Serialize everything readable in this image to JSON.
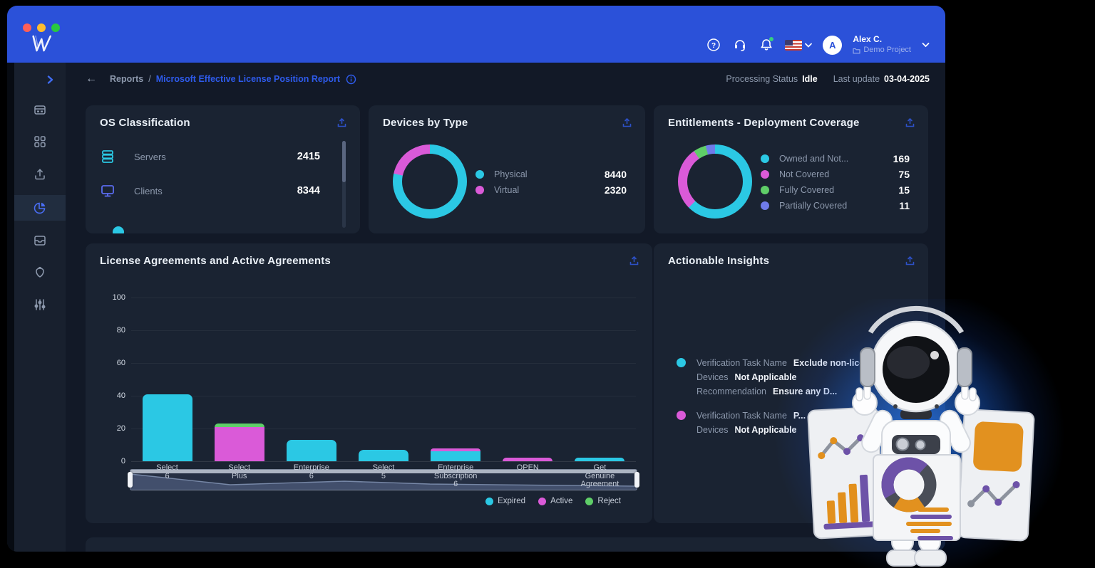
{
  "colors": {
    "header_blue": "#2b51d9",
    "link_blue": "#2e5bec",
    "cyan": "#2bc8e4",
    "magenta": "#da5ad8",
    "green": "#5fce68",
    "purple": "#6f7bea",
    "card_bg": "#1a2332"
  },
  "header": {
    "avatar_letter": "A",
    "user_name": "Alex C.",
    "project_name": "Demo Project",
    "icons": [
      "help-icon",
      "headset-icon",
      "bell-icon",
      "flag-us-icon",
      "chevron-down-icon",
      "folder-icon"
    ]
  },
  "toolbar": {
    "back": "←",
    "breadcrumb_root": "Reports",
    "breadcrumb_separator": "/",
    "breadcrumb_current": "Microsoft Effective License Position Report",
    "processing_status_label": "Processing Status",
    "processing_status_value": "Idle",
    "last_update_label": "Last update",
    "last_update_value": "03-04-2025"
  },
  "sidebar": {
    "items": [
      "devices",
      "apps",
      "upload",
      "reports",
      "inbox",
      "security",
      "filters"
    ],
    "active_item": "reports"
  },
  "cards": {
    "os_classification": {
      "title": "OS Classification",
      "rows": [
        {
          "icon": "servers",
          "label": "Servers",
          "value": "2415"
        },
        {
          "icon": "clients",
          "label": "Clients",
          "value": "8344"
        }
      ]
    },
    "devices_by_type": {
      "title": "Devices by Type",
      "chart_data": {
        "type": "pie",
        "donut": true,
        "series": [
          {
            "label": "Physical",
            "value": 8440,
            "color": "#2bc8e4"
          },
          {
            "label": "Virtual",
            "value": 2320,
            "color": "#da5ad8"
          }
        ]
      }
    },
    "entitlements": {
      "title": "Entitlements - Deployment Coverage",
      "chart_data": {
        "type": "pie",
        "donut": true,
        "series": [
          {
            "label": "Owned and Not...",
            "value": 169,
            "color": "#2bc8e4"
          },
          {
            "label": "Not Covered",
            "value": 75,
            "color": "#da5ad8"
          },
          {
            "label": "Fully Covered",
            "value": 15,
            "color": "#5fce68"
          },
          {
            "label": "Partially Covered",
            "value": 11,
            "color": "#6f7bea"
          }
        ]
      }
    },
    "license_agreements": {
      "title": "License Agreements and Active Agreements",
      "chart_data": {
        "type": "bar",
        "stacked": true,
        "categories": [
          [
            "Select",
            "6"
          ],
          [
            "Select",
            "Plus"
          ],
          [
            "Enterprise",
            "6"
          ],
          [
            "Select",
            "5"
          ],
          [
            "Enterprise",
            "Subscription",
            "6"
          ],
          [
            "OPEN"
          ],
          [
            "Get",
            "Genuine",
            "Agreement"
          ]
        ],
        "series": [
          {
            "name": "Expired",
            "color": "#2bc8e4",
            "values": [
              41,
              0,
              13,
              7,
              6,
              0,
              2
            ]
          },
          {
            "name": "Active",
            "color": "#da5ad8",
            "values": [
              0,
              21,
              0,
              0,
              2,
              2,
              0
            ]
          },
          {
            "name": "Reject",
            "color": "#5fce68",
            "values": [
              0,
              2,
              0,
              0,
              0,
              0,
              0
            ]
          }
        ],
        "ylim": [
          0,
          100
        ],
        "yticks": [
          0,
          20,
          40,
          60,
          80,
          100
        ],
        "legend_position": "bottom-right",
        "grid": true
      }
    },
    "actionable_insights": {
      "title": "Actionable Insights",
      "items": [
        {
          "bullet_color": "#2bc8e4",
          "rows": [
            {
              "label": "Verification Task Name",
              "value": "Exclude non-lice..."
            },
            {
              "label": "Devices",
              "value": "Not Applicable"
            },
            {
              "label": "Recommendation",
              "value": "Ensure any D..."
            }
          ]
        },
        {
          "bullet_color": "#da5ad8",
          "rows": [
            {
              "label": "Verification Task Name",
              "value": "P..."
            },
            {
              "label": "Devices",
              "value": "Not Applicable"
            }
          ]
        }
      ]
    }
  }
}
